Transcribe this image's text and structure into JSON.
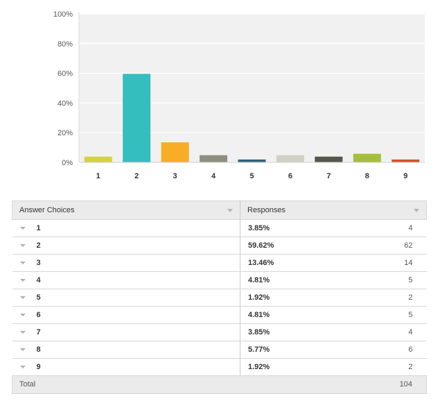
{
  "chart_data": {
    "type": "bar",
    "categories": [
      "1",
      "2",
      "3",
      "4",
      "5",
      "6",
      "7",
      "8",
      "9"
    ],
    "values": [
      3.85,
      59.62,
      13.46,
      4.81,
      1.92,
      4.81,
      3.85,
      5.77,
      1.92
    ],
    "ylim": [
      0,
      100
    ],
    "yticks": [
      "0%",
      "20%",
      "40%",
      "60%",
      "80%",
      "100%"
    ],
    "colors": [
      "#d4d43a",
      "#34bebe",
      "#f7ad25",
      "#8e8e80",
      "#2f6478",
      "#d1d1c4",
      "#55574a",
      "#a5bf38",
      "#d4502a"
    ],
    "grid": true
  },
  "table": {
    "headers": {
      "choices": "Answer Choices",
      "responses": "Responses"
    },
    "rows": [
      {
        "choice": "1",
        "percent": "3.85%",
        "count": "4"
      },
      {
        "choice": "2",
        "percent": "59.62%",
        "count": "62"
      },
      {
        "choice": "3",
        "percent": "13.46%",
        "count": "14"
      },
      {
        "choice": "4",
        "percent": "4.81%",
        "count": "5"
      },
      {
        "choice": "5",
        "percent": "1.92%",
        "count": "2"
      },
      {
        "choice": "6",
        "percent": "4.81%",
        "count": "5"
      },
      {
        "choice": "7",
        "percent": "3.85%",
        "count": "4"
      },
      {
        "choice": "8",
        "percent": "5.77%",
        "count": "6"
      },
      {
        "choice": "9",
        "percent": "1.92%",
        "count": "2"
      }
    ],
    "total": {
      "label": "Total",
      "value": "104"
    }
  }
}
